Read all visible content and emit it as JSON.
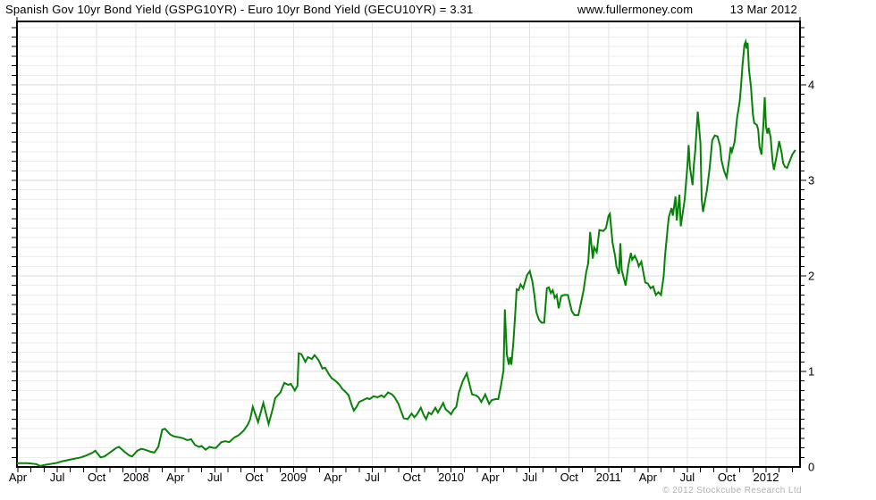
{
  "header": {
    "title": "Spanish Gov 10yr Bond Yield (GSPG10YR) - Euro 10yr Bond Yield (GECU10YR) = 3.31",
    "website": "www.fullermoney.com",
    "date": "13 Mar 2012"
  },
  "footer": {
    "copyright": "© 2012 Stockcube Research Ltd"
  },
  "colors": {
    "background": "#ffffff",
    "axis": "#000000",
    "grid_minor": "#ececec",
    "grid_major": "#d8d8d8",
    "grid_vertical": "#e2e2e2",
    "line": "#068206",
    "text": "#000000",
    "copyright": "#b0b0b0"
  },
  "chart_data": {
    "type": "line",
    "title": "Spanish Gov 10yr Bond Yield (GSPG10YR) - Euro 10yr Bond Yield (GECU10YR)",
    "last_value": 3.31,
    "as_of": "13 Mar 2012",
    "legend": "none",
    "grid": true,
    "x_axis": {
      "unit": "months since Apr 2007",
      "range": [
        0,
        59.6
      ],
      "minor_tick_every_months": 1,
      "grid_every_months": 3,
      "ticks": [
        {
          "label": "Apr",
          "m": 0
        },
        {
          "label": "Jul",
          "m": 3
        },
        {
          "label": "Oct",
          "m": 6
        },
        {
          "label": "2008",
          "m": 9
        },
        {
          "label": "Apr",
          "m": 12
        },
        {
          "label": "Jul",
          "m": 15
        },
        {
          "label": "Oct",
          "m": 18
        },
        {
          "label": "2009",
          "m": 21
        },
        {
          "label": "Apr",
          "m": 24
        },
        {
          "label": "Jul",
          "m": 27
        },
        {
          "label": "Oct",
          "m": 30
        },
        {
          "label": "2010",
          "m": 33
        },
        {
          "label": "Apr",
          "m": 36
        },
        {
          "label": "Jul",
          "m": 39
        },
        {
          "label": "Oct",
          "m": 42
        },
        {
          "label": "2011",
          "m": 45
        },
        {
          "label": "Apr",
          "m": 48
        },
        {
          "label": "Jul",
          "m": 51
        },
        {
          "label": "Oct",
          "m": 54
        },
        {
          "label": "2012",
          "m": 57
        }
      ]
    },
    "y_axis": {
      "range": [
        0,
        4.66
      ],
      "labels": [
        0,
        1,
        2,
        3,
        4
      ],
      "label_side": "right",
      "minor_step": 0.1,
      "major_step": 1
    },
    "series": [
      {
        "name": "GSPG10YR minus GECU10YR spread (%)",
        "color": "#068206",
        "points": [
          [
            0,
            0.04
          ],
          [
            0.7,
            0.04
          ],
          [
            1.4,
            0.03
          ],
          [
            1.7,
            0.01
          ],
          [
            2.0,
            0.02
          ],
          [
            2.4,
            0.03
          ],
          [
            2.9,
            0.04
          ],
          [
            3.4,
            0.06
          ],
          [
            4.1,
            0.08
          ],
          [
            4.8,
            0.1
          ],
          [
            5.2,
            0.12
          ],
          [
            5.7,
            0.15
          ],
          [
            5.9,
            0.17
          ],
          [
            6.3,
            0.1
          ],
          [
            6.6,
            0.11
          ],
          [
            7.0,
            0.15
          ],
          [
            7.5,
            0.2
          ],
          [
            7.7,
            0.21
          ],
          [
            8.2,
            0.15
          ],
          [
            8.5,
            0.12
          ],
          [
            8.7,
            0.11
          ],
          [
            9.1,
            0.17
          ],
          [
            9.4,
            0.19
          ],
          [
            9.7,
            0.18
          ],
          [
            10.1,
            0.16
          ],
          [
            10.4,
            0.15
          ],
          [
            10.7,
            0.21
          ],
          [
            11.0,
            0.39
          ],
          [
            11.2,
            0.4
          ],
          [
            11.6,
            0.34
          ],
          [
            11.9,
            0.32
          ],
          [
            12.3,
            0.31
          ],
          [
            12.6,
            0.3
          ],
          [
            12.9,
            0.28
          ],
          [
            13.2,
            0.29
          ],
          [
            13.5,
            0.23
          ],
          [
            13.8,
            0.21
          ],
          [
            14.0,
            0.22
          ],
          [
            14.3,
            0.18
          ],
          [
            14.6,
            0.21
          ],
          [
            14.9,
            0.2
          ],
          [
            15.1,
            0.2
          ],
          [
            15.5,
            0.26
          ],
          [
            15.8,
            0.27
          ],
          [
            16.1,
            0.26
          ],
          [
            16.5,
            0.31
          ],
          [
            16.8,
            0.33
          ],
          [
            17.2,
            0.38
          ],
          [
            17.5,
            0.44
          ],
          [
            17.7,
            0.5
          ],
          [
            17.9,
            0.63
          ],
          [
            18.3,
            0.47
          ],
          [
            18.7,
            0.67
          ],
          [
            19.1,
            0.45
          ],
          [
            19.4,
            0.6
          ],
          [
            19.6,
            0.72
          ],
          [
            20.0,
            0.78
          ],
          [
            20.3,
            0.88
          ],
          [
            20.6,
            0.86
          ],
          [
            20.8,
            0.87
          ],
          [
            21.1,
            0.8
          ],
          [
            21.3,
            0.85
          ],
          [
            21.4,
            1.19
          ],
          [
            21.6,
            1.18
          ],
          [
            21.9,
            1.1
          ],
          [
            22.1,
            1.15
          ],
          [
            22.4,
            1.13
          ],
          [
            22.6,
            1.17
          ],
          [
            22.9,
            1.12
          ],
          [
            23.2,
            1.03
          ],
          [
            23.4,
            1.04
          ],
          [
            23.7,
            0.97
          ],
          [
            23.9,
            0.93
          ],
          [
            24.2,
            0.9
          ],
          [
            24.5,
            0.86
          ],
          [
            24.7,
            0.82
          ],
          [
            25.0,
            0.78
          ],
          [
            25.2,
            0.75
          ],
          [
            25.4,
            0.66
          ],
          [
            25.6,
            0.59
          ],
          [
            25.8,
            0.63
          ],
          [
            26.0,
            0.68
          ],
          [
            26.3,
            0.7
          ],
          [
            26.6,
            0.72
          ],
          [
            26.8,
            0.71
          ],
          [
            27.1,
            0.74
          ],
          [
            27.4,
            0.73
          ],
          [
            27.7,
            0.75
          ],
          [
            27.9,
            0.73
          ],
          [
            28.2,
            0.78
          ],
          [
            28.5,
            0.76
          ],
          [
            28.7,
            0.73
          ],
          [
            29.0,
            0.66
          ],
          [
            29.2,
            0.58
          ],
          [
            29.4,
            0.51
          ],
          [
            29.7,
            0.5
          ],
          [
            30.0,
            0.56
          ],
          [
            30.2,
            0.52
          ],
          [
            30.4,
            0.55
          ],
          [
            30.7,
            0.62
          ],
          [
            30.9,
            0.55
          ],
          [
            31.1,
            0.5
          ],
          [
            31.3,
            0.57
          ],
          [
            31.5,
            0.55
          ],
          [
            31.8,
            0.62
          ],
          [
            32.0,
            0.57
          ],
          [
            32.4,
            0.67
          ],
          [
            32.6,
            0.6
          ],
          [
            32.8,
            0.58
          ],
          [
            33.0,
            0.55
          ],
          [
            33.2,
            0.6
          ],
          [
            33.4,
            0.63
          ],
          [
            33.6,
            0.78
          ],
          [
            33.9,
            0.9
          ],
          [
            34.2,
            0.98
          ],
          [
            34.4,
            0.87
          ],
          [
            34.6,
            0.76
          ],
          [
            34.9,
            0.75
          ],
          [
            35.1,
            0.73
          ],
          [
            35.3,
            0.68
          ],
          [
            35.5,
            0.73
          ],
          [
            35.6,
            0.76
          ],
          [
            35.9,
            0.66
          ],
          [
            36.1,
            0.7
          ],
          [
            36.4,
            0.71
          ],
          [
            36.6,
            0.71
          ],
          [
            36.8,
            0.85
          ],
          [
            37.0,
            1.01
          ],
          [
            37.1,
            1.65
          ],
          [
            37.25,
            1.18
          ],
          [
            37.4,
            1.07
          ],
          [
            37.5,
            1.15
          ],
          [
            37.6,
            1.07
          ],
          [
            37.75,
            1.3
          ],
          [
            37.9,
            1.62
          ],
          [
            38.0,
            1.86
          ],
          [
            38.15,
            1.85
          ],
          [
            38.3,
            1.91
          ],
          [
            38.5,
            1.87
          ],
          [
            38.8,
            2.01
          ],
          [
            39.0,
            2.05
          ],
          [
            39.2,
            1.94
          ],
          [
            39.35,
            1.8
          ],
          [
            39.5,
            1.62
          ],
          [
            39.7,
            1.54
          ],
          [
            39.9,
            1.51
          ],
          [
            40.1,
            1.51
          ],
          [
            40.3,
            1.87
          ],
          [
            40.45,
            1.88
          ],
          [
            40.6,
            1.82
          ],
          [
            40.75,
            1.85
          ],
          [
            40.9,
            1.77
          ],
          [
            41.05,
            1.8
          ],
          [
            41.2,
            1.66
          ],
          [
            41.4,
            1.79
          ],
          [
            41.6,
            1.8
          ],
          [
            41.9,
            1.8
          ],
          [
            42.2,
            1.63
          ],
          [
            42.4,
            1.59
          ],
          [
            42.7,
            1.59
          ],
          [
            42.9,
            1.72
          ],
          [
            43.1,
            1.85
          ],
          [
            43.3,
            2.04
          ],
          [
            43.45,
            2.13
          ],
          [
            43.6,
            2.46
          ],
          [
            43.8,
            2.18
          ],
          [
            43.9,
            2.3
          ],
          [
            44.1,
            2.25
          ],
          [
            44.3,
            2.48
          ],
          [
            44.6,
            2.47
          ],
          [
            44.8,
            2.5
          ],
          [
            45.0,
            2.63
          ],
          [
            45.1,
            2.65
          ],
          [
            45.3,
            2.35
          ],
          [
            45.5,
            2.21
          ],
          [
            45.6,
            2.1
          ],
          [
            45.8,
            2.02
          ],
          [
            45.9,
            2.34
          ],
          [
            46.0,
            2.06
          ],
          [
            46.1,
            2.01
          ],
          [
            46.3,
            1.9
          ],
          [
            46.5,
            2.1
          ],
          [
            46.7,
            2.24
          ],
          [
            46.8,
            2.17
          ],
          [
            47.0,
            2.21
          ],
          [
            47.2,
            2.15
          ],
          [
            47.3,
            2.1
          ],
          [
            47.5,
            2.15
          ],
          [
            47.8,
            1.93
          ],
          [
            48.0,
            1.92
          ],
          [
            48.2,
            1.87
          ],
          [
            48.4,
            1.89
          ],
          [
            48.6,
            1.8
          ],
          [
            48.8,
            1.83
          ],
          [
            49.0,
            1.8
          ],
          [
            49.2,
            2.0
          ],
          [
            49.3,
            2.2
          ],
          [
            49.5,
            2.5
          ],
          [
            49.6,
            2.62
          ],
          [
            49.8,
            2.71
          ],
          [
            49.9,
            2.63
          ],
          [
            50.1,
            2.83
          ],
          [
            50.2,
            2.58
          ],
          [
            50.4,
            2.85
          ],
          [
            50.5,
            2.52
          ],
          [
            50.8,
            2.8
          ],
          [
            51.0,
            3.14
          ],
          [
            51.1,
            3.37
          ],
          [
            51.2,
            3.14
          ],
          [
            51.4,
            2.95
          ],
          [
            51.5,
            3.16
          ],
          [
            51.6,
            3.3
          ],
          [
            51.8,
            3.72
          ],
          [
            52.0,
            3.39
          ],
          [
            52.1,
            2.8
          ],
          [
            52.2,
            2.67
          ],
          [
            52.5,
            2.9
          ],
          [
            52.7,
            3.13
          ],
          [
            52.9,
            3.42
          ],
          [
            53.1,
            3.47
          ],
          [
            53.3,
            3.46
          ],
          [
            53.5,
            3.36
          ],
          [
            53.6,
            3.21
          ],
          [
            53.8,
            3.1
          ],
          [
            54.0,
            3.03
          ],
          [
            54.2,
            3.23
          ],
          [
            54.3,
            3.35
          ],
          [
            54.4,
            3.3
          ],
          [
            54.6,
            3.4
          ],
          [
            54.7,
            3.53
          ],
          [
            54.8,
            3.66
          ],
          [
            55.0,
            3.83
          ],
          [
            55.1,
            4.0
          ],
          [
            55.2,
            4.2
          ],
          [
            55.35,
            4.42
          ],
          [
            55.45,
            4.45
          ],
          [
            55.5,
            4.38
          ],
          [
            55.6,
            4.44
          ],
          [
            55.7,
            4.16
          ],
          [
            55.85,
            3.98
          ],
          [
            56.0,
            3.69
          ],
          [
            56.1,
            3.6
          ],
          [
            56.3,
            3.58
          ],
          [
            56.4,
            3.53
          ],
          [
            56.5,
            3.35
          ],
          [
            56.65,
            3.27
          ],
          [
            56.8,
            3.6
          ],
          [
            56.9,
            3.87
          ],
          [
            57.0,
            3.56
          ],
          [
            57.1,
            3.49
          ],
          [
            57.2,
            3.55
          ],
          [
            57.35,
            3.45
          ],
          [
            57.5,
            3.2
          ],
          [
            57.6,
            3.11
          ],
          [
            57.8,
            3.25
          ],
          [
            58.0,
            3.41
          ],
          [
            58.2,
            3.28
          ],
          [
            58.3,
            3.18
          ],
          [
            58.45,
            3.14
          ],
          [
            58.6,
            3.13
          ],
          [
            58.8,
            3.2
          ],
          [
            59.0,
            3.27
          ],
          [
            59.2,
            3.31
          ]
        ]
      }
    ]
  }
}
